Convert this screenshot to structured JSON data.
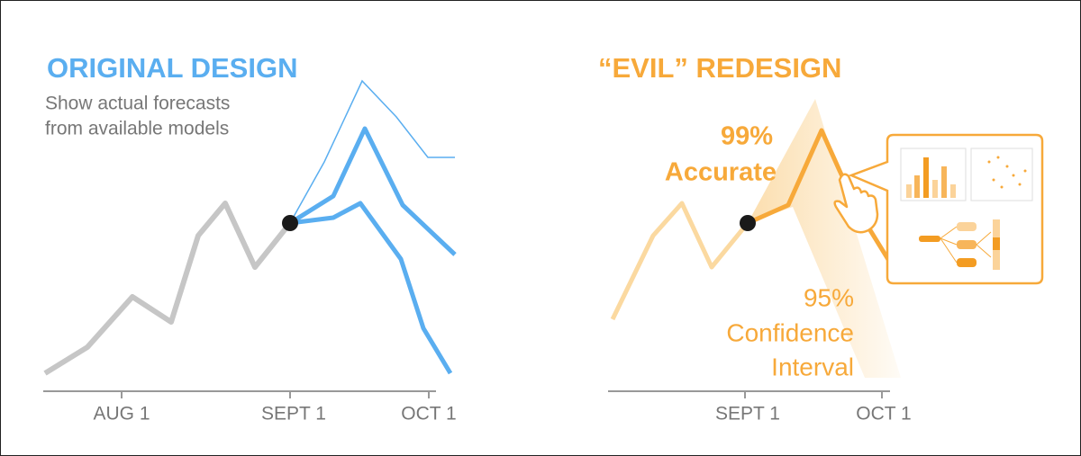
{
  "left": {
    "title": "ORIGINAL DESIGN",
    "subtitle_lines": [
      "Show actual forecasts",
      "from available models"
    ],
    "axis_labels": [
      "AUG 1",
      "SEPT 1",
      "OCT 1"
    ]
  },
  "right": {
    "title": "“EVIL” REDESIGN",
    "accuracy_lines": [
      "99%",
      "Accurate"
    ],
    "interval_lines": [
      "95%",
      "Confidence",
      "Interval"
    ],
    "axis_labels": [
      "SEPT 1",
      "OCT 1"
    ]
  }
}
